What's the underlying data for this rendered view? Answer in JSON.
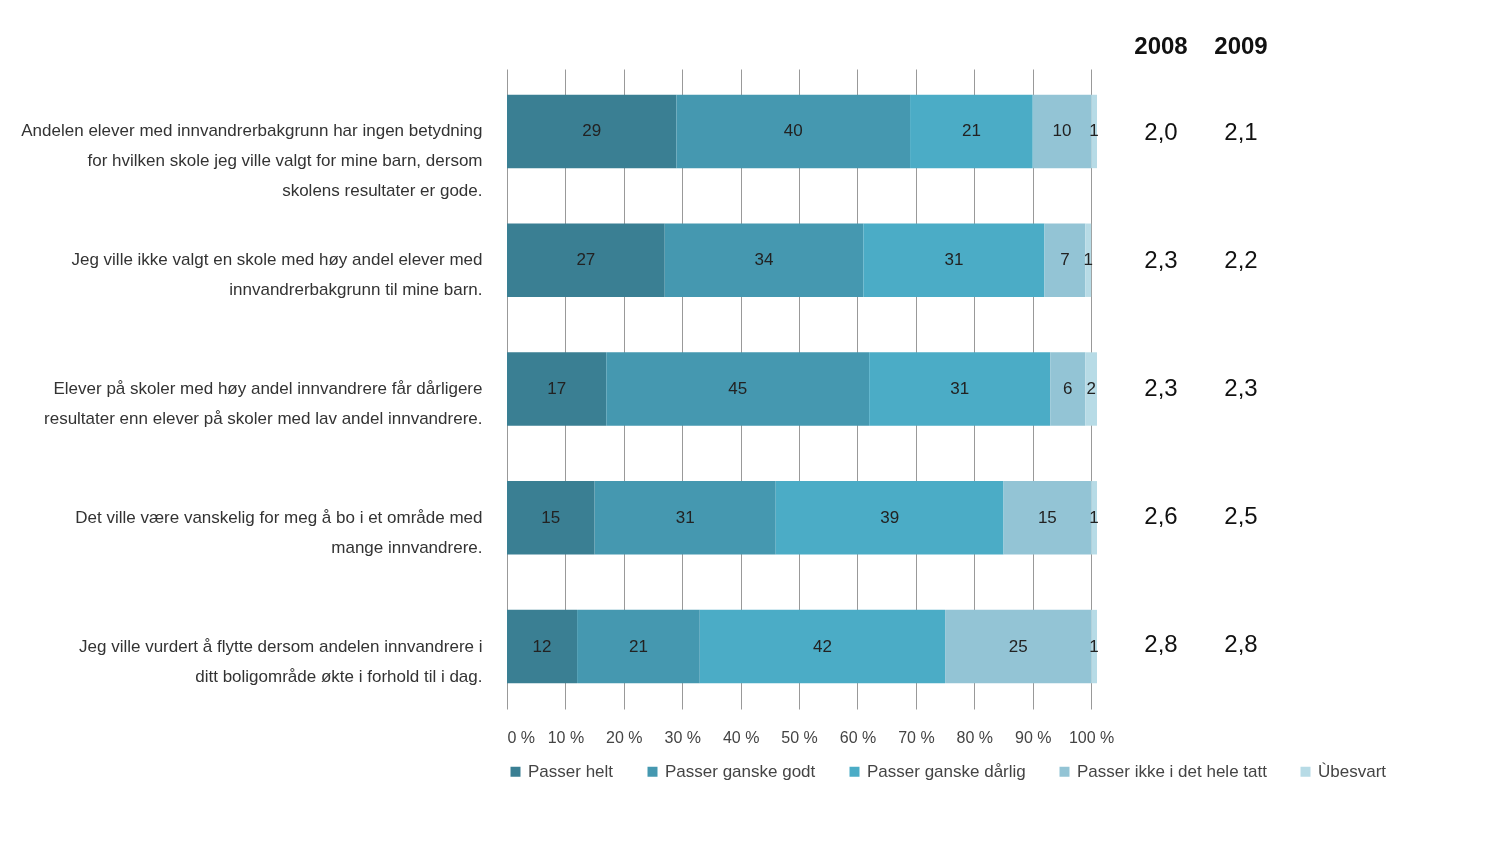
{
  "chart_data": [
    {
      "type": "bar",
      "orientation": "horizontal",
      "stacked": true,
      "data_labels": true,
      "grid": "x",
      "legend": "bottom",
      "categories": [
        "Andelen elever med innvandrerbakgrunn har ingen betydning for hvilken skole jeg ville valgt for mine barn, dersom skolens resultater er gode.",
        "Jeg ville ikke valgt en skole med høy andel elever med innvandrerbakgrunn til mine barn.",
        "Elever på skoler med høy andel innvandrere får dårligere resultater enn elever på skoler med lav andel innvandrere.",
        "Det ville være vanskelig for meg å bo i et område med mange innvandrere.",
        "Jeg ville vurdert å flytte dersom andelen innvandrere i ditt boligområde økte i forhold til i dag."
      ],
      "xlim": [
        0,
        101
      ],
      "xticks": [
        {
          "value": 0,
          "label": "0 %"
        },
        {
          "value": 10,
          "label": "10 %"
        },
        {
          "value": 20,
          "label": "20 %"
        },
        {
          "value": 30,
          "label": "30 %"
        },
        {
          "value": 40,
          "label": "40 %"
        },
        {
          "value": 50,
          "label": "50 %"
        },
        {
          "value": 60,
          "label": "60 %"
        },
        {
          "value": 70,
          "label": "70 %"
        },
        {
          "value": 80,
          "label": "80 %"
        },
        {
          "value": 90,
          "label": "90 %"
        },
        {
          "value": 100,
          "label": "100 %"
        }
      ],
      "series": [
        {
          "name": "Passer helt",
          "color": "#3a7f93",
          "values": [
            29,
            27,
            17,
            15,
            12
          ]
        },
        {
          "name": "Passer ganske godt",
          "color": "#4598b0",
          "values": [
            40,
            34,
            45,
            31,
            21
          ]
        },
        {
          "name": "Passer ganske dårlig",
          "color": "#4bacc6",
          "values": [
            21,
            31,
            31,
            39,
            42
          ]
        },
        {
          "name": "Passer ikke i det hele tatt",
          "color": "#93c4d5",
          "values": [
            10,
            7,
            6,
            15,
            25
          ]
        },
        {
          "name": "Ùbesvart",
          "color": "#b7dbe6",
          "values": [
            1,
            1,
            2,
            1,
            1
          ]
        }
      ]
    },
    {
      "type": "other",
      "annotations": [
        "2008",
        "2009",
        "2,0",
        "2,1",
        "2,3",
        "2,2",
        "2,3",
        "2,3",
        "2,6",
        "2,5",
        "2,8",
        "2,8"
      ]
    }
  ]
}
